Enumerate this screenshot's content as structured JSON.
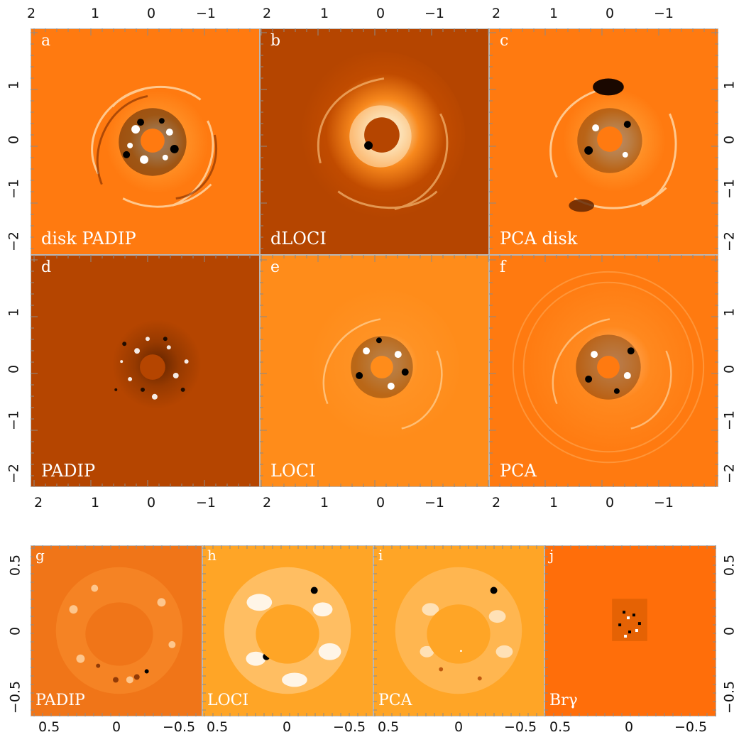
{
  "colors": {
    "bright_orange": "#ff7a10",
    "dark_orange": "#b54500",
    "mid_orange": "#ff8c1a",
    "pale_orange": "#ffa526",
    "br_gamma_orange": "#ff6e0a",
    "mask": "#e06a00"
  },
  "top_grid": {
    "panels": [
      {
        "letter": "a",
        "label": "disk PADIP",
        "tone": "bright"
      },
      {
        "letter": "b",
        "label": "dLOCI",
        "tone": "dark"
      },
      {
        "letter": "c",
        "label": "PCA disk",
        "tone": "bright"
      },
      {
        "letter": "d",
        "label": "PADIP",
        "tone": "dark_noisy"
      },
      {
        "letter": "e",
        "label": "LOCI",
        "tone": "mid"
      },
      {
        "letter": "f",
        "label": "PCA",
        "tone": "bright"
      }
    ],
    "x_ticks": [
      "2",
      "1",
      "0",
      "−1"
    ],
    "y_ticks": [
      "1",
      "0",
      "−1",
      "−2"
    ]
  },
  "bottom_row": {
    "panels": [
      {
        "letter": "g",
        "label": "PADIP"
      },
      {
        "letter": "h",
        "label": "LOCI"
      },
      {
        "letter": "i",
        "label": "PCA"
      },
      {
        "letter": "j",
        "label": "Brγ"
      }
    ],
    "x_ticks": [
      "0.5",
      "0",
      "−0.5"
    ],
    "y_ticks": [
      "0.5",
      "0",
      "−0.5"
    ]
  }
}
